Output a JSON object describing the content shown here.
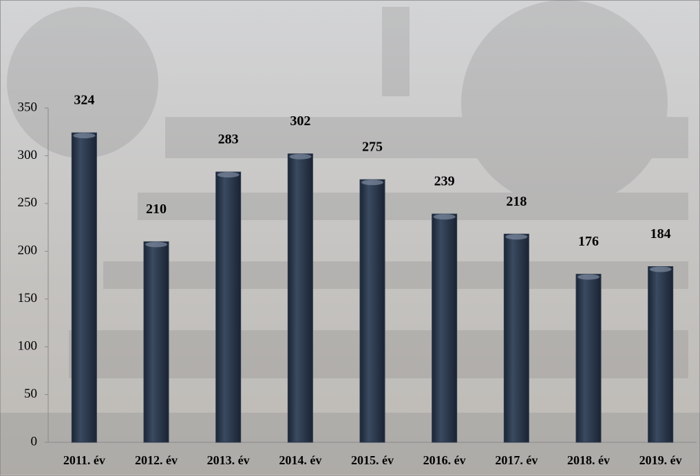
{
  "chart_data": {
    "type": "bar",
    "categories": [
      "2011. év",
      "2012. év",
      "2013. év",
      "2014. év",
      "2015. év",
      "2016. év",
      "2017. év",
      "2018. év",
      "2019. év"
    ],
    "values": [
      324,
      210,
      283,
      302,
      275,
      239,
      218,
      176,
      184
    ],
    "color": "#2b3a4f",
    "ylim": [
      0,
      350
    ],
    "yticks": [
      0,
      50,
      100,
      150,
      200,
      250,
      300,
      350
    ],
    "grid": false
  }
}
